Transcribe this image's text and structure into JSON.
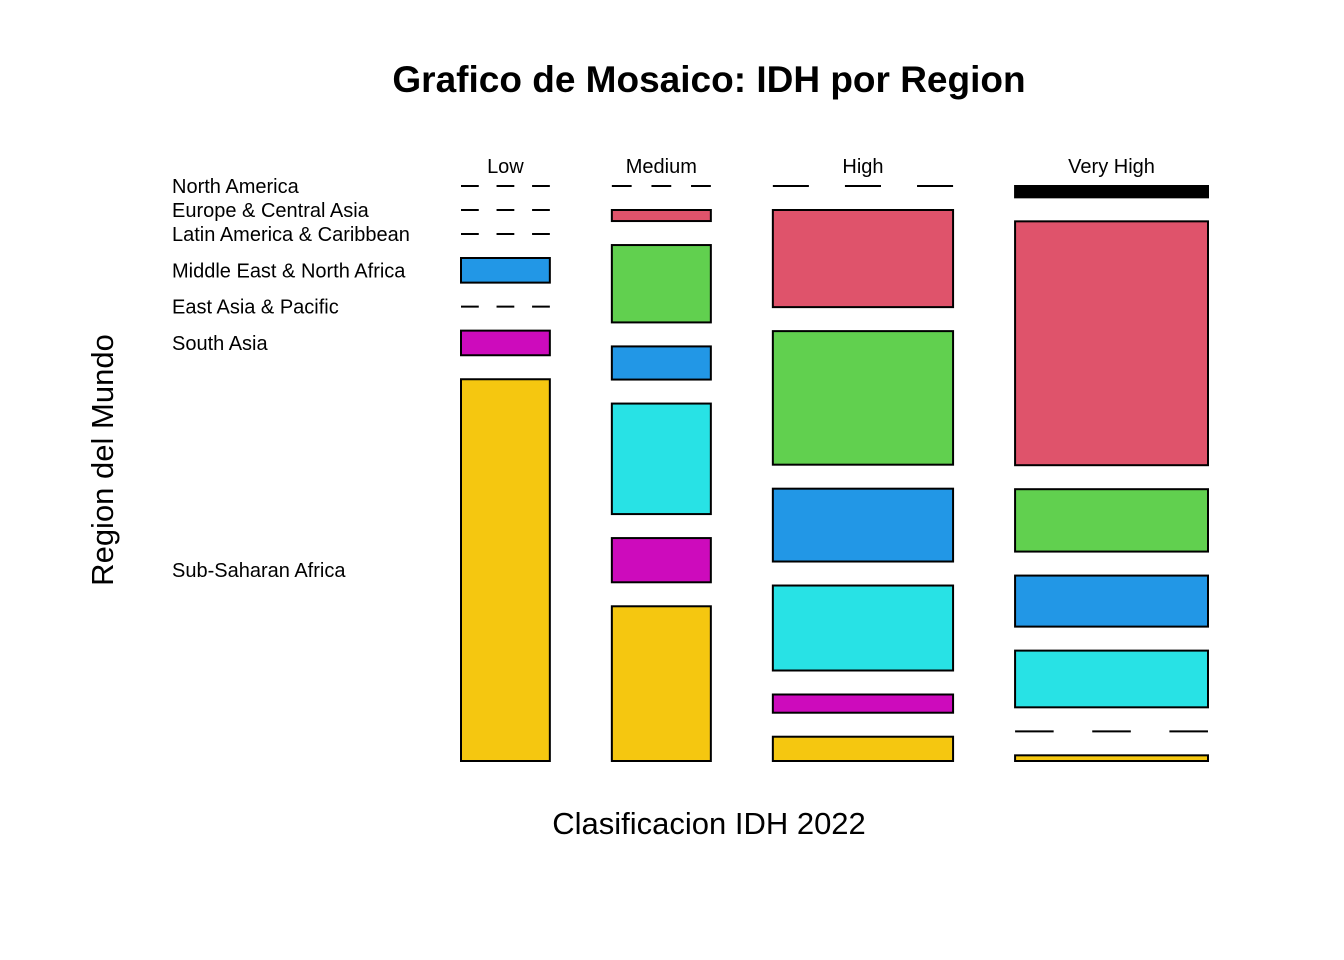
{
  "chart_data": {
    "type": "mosaic",
    "title": "Grafico de Mosaico: IDH por Region",
    "xlabel": "Clasificacion IDH 2022",
    "ylabel": "Region del Mundo",
    "columns": [
      "Low",
      "Medium",
      "High",
      "Very High"
    ],
    "rows": [
      "North America",
      "Europe & Central Asia",
      "Latin America & Caribbean",
      "Middle East & North Africa",
      "East Asia & Pacific",
      "South Asia",
      "Sub-Saharan Africa"
    ],
    "counts": {
      "Low": [
        0,
        0,
        0,
        2,
        0,
        2,
        31
      ],
      "Medium": [
        0,
        1,
        7,
        3,
        10,
        4,
        14
      ],
      "High": [
        0,
        16,
        22,
        12,
        14,
        3,
        4
      ],
      "Very High": [
        2,
        43,
        11,
        9,
        10,
        0,
        1
      ]
    },
    "colors": [
      "#000000",
      "#DF536B",
      "#61D04F",
      "#2297E6",
      "#28E2E5",
      "#CD0BBC",
      "#F5C710"
    ],
    "grid": false,
    "legend": "none"
  }
}
